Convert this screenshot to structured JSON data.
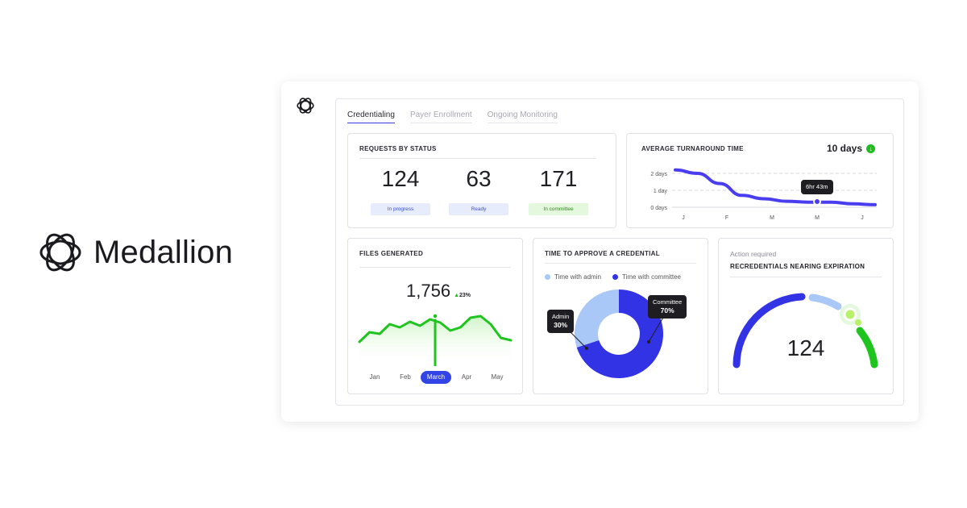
{
  "brand": {
    "name": "Medallion",
    "logo_icon": "medallion-logo-icon"
  },
  "tabs": [
    {
      "label": "Credentialing",
      "active": true
    },
    {
      "label": "Payer Enrollment",
      "active": false
    },
    {
      "label": "Ongoing Monitoring",
      "active": false
    }
  ],
  "requests": {
    "title": "REQUESTS BY STATUS",
    "stats": [
      {
        "value": "124",
        "label": "In progress",
        "color": "#e7ecfd"
      },
      {
        "value": "63",
        "label": "Ready",
        "color": "#e7ecfd"
      },
      {
        "value": "171",
        "label": "In committee",
        "color": "#e3f8dc"
      }
    ]
  },
  "turnaround": {
    "title": "AVERAGE TURNAROUND TIME",
    "value": "10 days",
    "status_icon": "down-arrow-icon",
    "tooltip": "6hr 43m",
    "y_ticks": [
      "2 days",
      "1 day",
      "0 days"
    ],
    "x_ticks": [
      "J",
      "F",
      "M",
      "M",
      "J"
    ],
    "line_color": "#4a3df0",
    "points_days": [
      2.2,
      2.0,
      1.4,
      0.7,
      0.5,
      0.35,
      0.3,
      0.3,
      0.2,
      0.15
    ]
  },
  "files": {
    "title": "FILES GENERATED",
    "value": "1,756",
    "delta": "23%",
    "line_color": "#1fc41f",
    "months": [
      "Jan",
      "Feb",
      "March",
      "Apr",
      "May"
    ],
    "selected_month": "March",
    "series": [
      30,
      42,
      40,
      52,
      48,
      55,
      50,
      58,
      54,
      44,
      48,
      60,
      62,
      52,
      35,
      32
    ]
  },
  "approve": {
    "title": "TIME TO APPROVE A CREDENTIAL",
    "legend": [
      {
        "label": "Time with admin",
        "color": "#a9c8f7"
      },
      {
        "label": "Time with committee",
        "color": "#3333e6"
      }
    ],
    "slices": [
      {
        "name": "Admin",
        "percent": "30%",
        "value": 30,
        "color": "#a9c8f7"
      },
      {
        "name": "Committee",
        "percent": "70%",
        "value": 70,
        "color": "#3333e6"
      }
    ]
  },
  "expiration": {
    "action": "Action required",
    "title": "RECREDENTIALS NEARING EXPIRATION",
    "value": "124"
  }
}
